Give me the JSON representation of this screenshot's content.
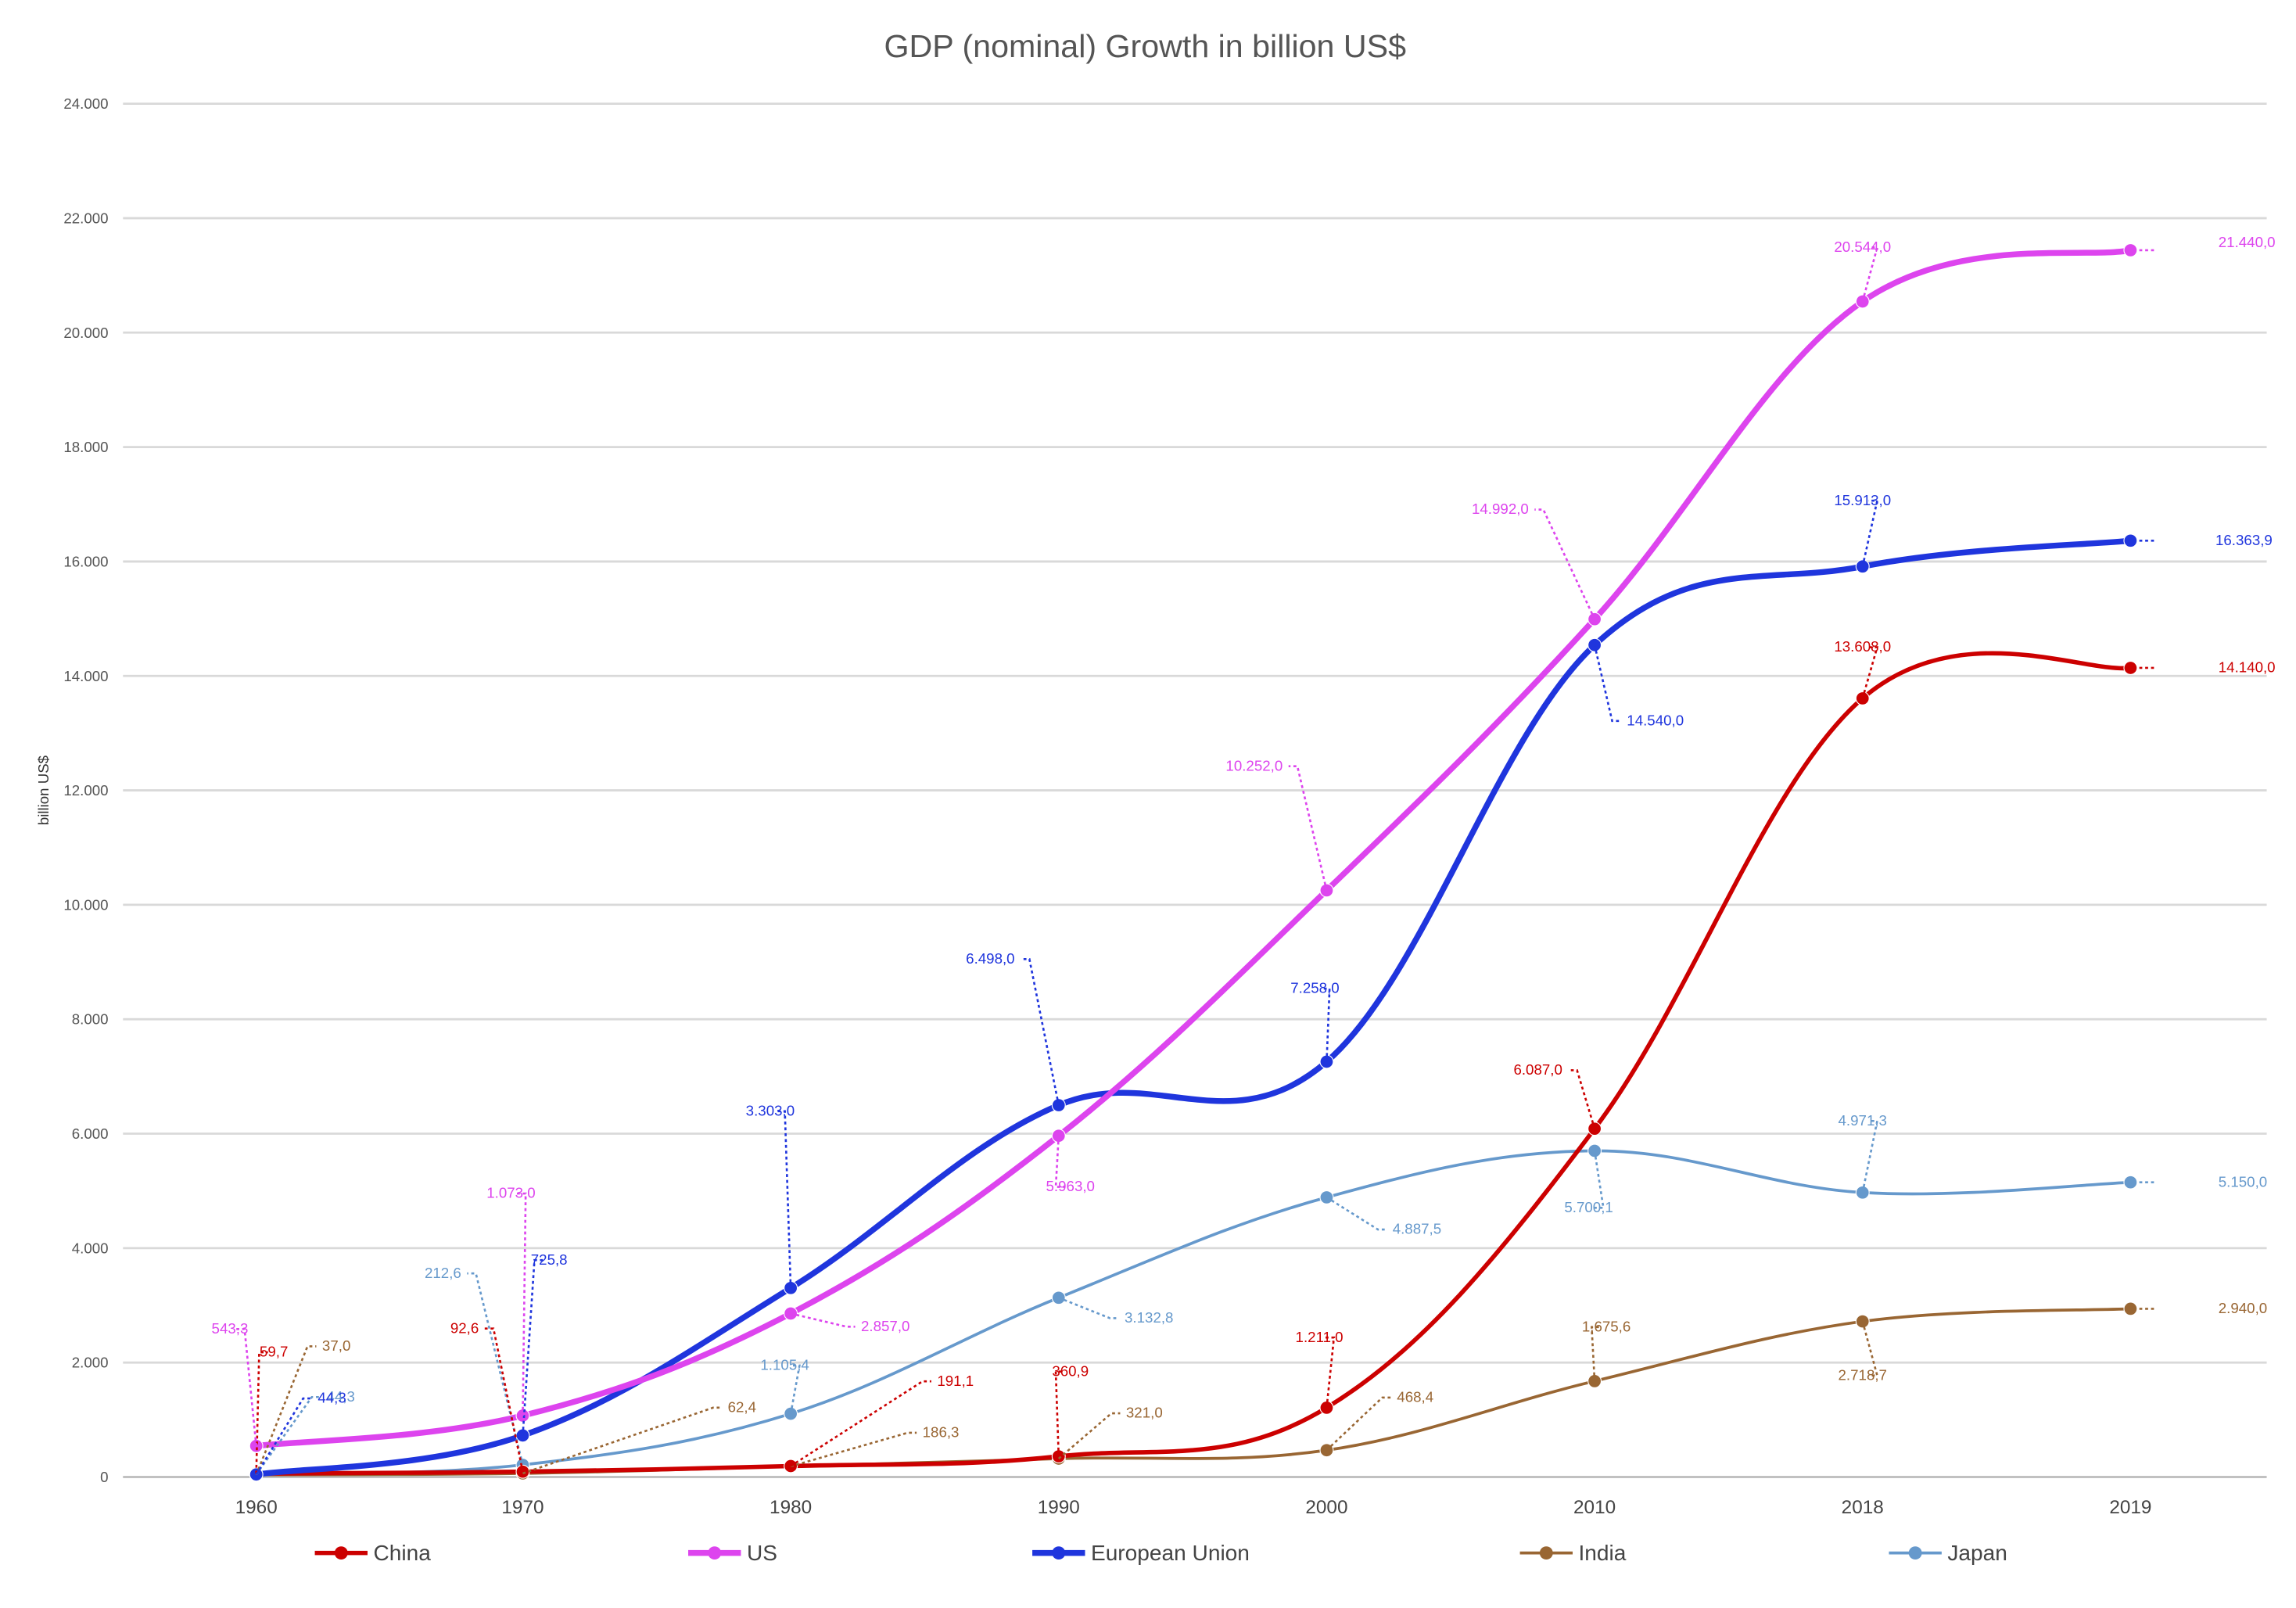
{
  "chart_data": {
    "type": "line",
    "title": "GDP (nominal)  Growth in billion  US$",
    "xlabel": "",
    "ylabel": "billion  US$",
    "categories": [
      "1960",
      "1970",
      "1980",
      "1990",
      "2000",
      "2010",
      "2018",
      "2019"
    ],
    "ylim": [
      0,
      24000
    ],
    "yticks": [
      {
        "value": 0,
        "label": "0"
      },
      {
        "value": 2000,
        "label": "2.000"
      },
      {
        "value": 4000,
        "label": "4.000"
      },
      {
        "value": 6000,
        "label": "6.000"
      },
      {
        "value": 8000,
        "label": "8.000"
      },
      {
        "value": 10000,
        "label": "10.000"
      },
      {
        "value": 12000,
        "label": "12.000"
      },
      {
        "value": 14000,
        "label": "14.000"
      },
      {
        "value": 16000,
        "label": "16.000"
      },
      {
        "value": 18000,
        "label": "18.000"
      },
      {
        "value": 20000,
        "label": "20.000"
      },
      {
        "value": 22000,
        "label": "22.000"
      },
      {
        "value": 24000,
        "label": "24.000"
      }
    ],
    "grid": true,
    "legend_position": "bottom",
    "series": [
      {
        "name": "China",
        "color": "#cc0000",
        "width": 3,
        "values": [
          59.7,
          92.6,
          191.1,
          360.9,
          1211.0,
          6087.0,
          13608.0,
          14140.0
        ],
        "labels": [
          "59,7",
          "92,6",
          "191,1",
          "360,9",
          "1.211,0",
          "6.087,0",
          "13.608,0",
          "14.140,0"
        ]
      },
      {
        "name": "US",
        "color": "#dd44ee",
        "width": 4,
        "values": [
          543.3,
          1073.0,
          2857.0,
          5963.0,
          10252.0,
          14992.0,
          20544.0,
          21440.0
        ],
        "labels": [
          "543,3",
          "1.073,0",
          "2.857,0",
          "5.963,0",
          "10.252,0",
          "14.992,0",
          "20.544,0",
          "21.440,0"
        ]
      },
      {
        "name": "European Union",
        "color": "#1f35dd",
        "width": 4,
        "values": [
          44.3,
          725.8,
          3303.0,
          6498.0,
          7258.0,
          14540.0,
          15913.0,
          16363.9
        ],
        "labels": [
          "44,3",
          "725,8",
          "3.303,0",
          "6.498,0",
          "7.258,0",
          "14.540,0",
          "15.913,0",
          "16.363,9"
        ]
      },
      {
        "name": "India",
        "color": "#996633",
        "width": 2,
        "values": [
          37.0,
          62.4,
          186.3,
          321.0,
          468.4,
          1675.6,
          2718.7,
          2940.0
        ],
        "labels": [
          "37,0",
          "62,4",
          "186,3",
          "321,0",
          "468,4",
          "1.675,6",
          "2.718,7",
          "2.940,0"
        ]
      },
      {
        "name": "Japan",
        "color": "#6699cc",
        "width": 2,
        "values": [
          44.3,
          212.6,
          1105.4,
          3132.8,
          4887.5,
          5700.1,
          4971.3,
          5150.0
        ],
        "labels": [
          "44,3",
          "212,6",
          "1.105,4",
          "3.132,8",
          "4.887,5",
          "5.700,1",
          "4.971,3",
          "5.150,0"
        ]
      }
    ]
  }
}
